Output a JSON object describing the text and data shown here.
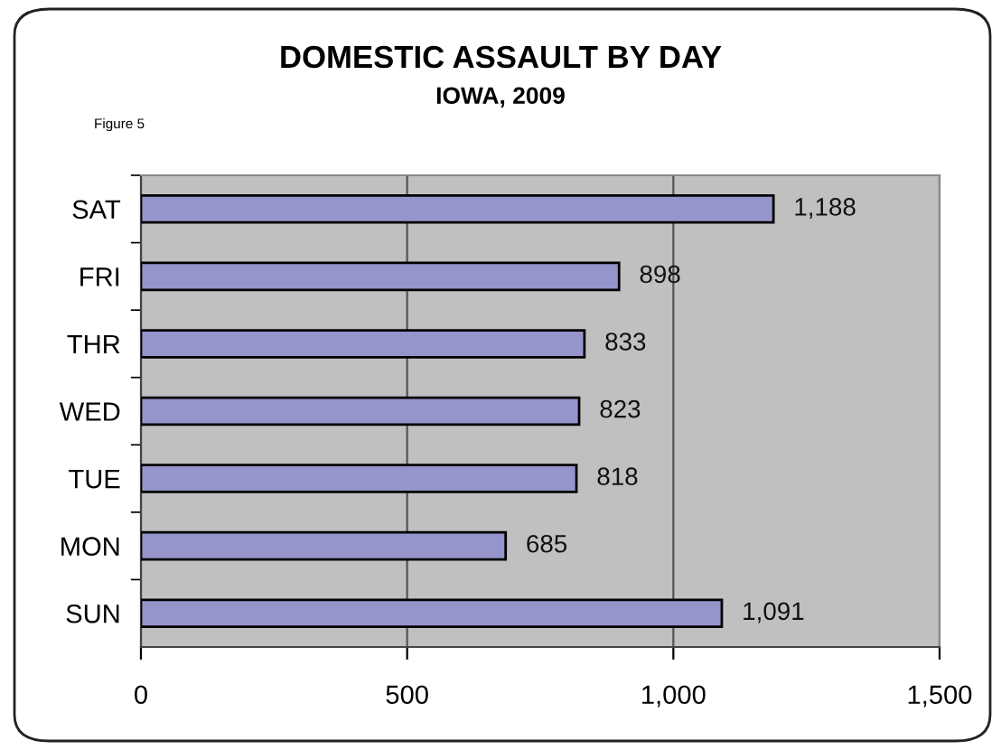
{
  "chart_data": {
    "type": "bar",
    "orientation": "horizontal",
    "title": "DOMESTIC ASSAULT BY DAY",
    "subtitle": "IOWA, 2009",
    "annotations": [
      "Figure 5"
    ],
    "categories": [
      "SAT",
      "FRI",
      "THR",
      "WED",
      "TUE",
      "MON",
      "SUN"
    ],
    "values": [
      1188,
      898,
      833,
      823,
      818,
      685,
      1091
    ],
    "value_labels": [
      "1,188",
      "898",
      "833",
      "823",
      "818",
      "685",
      "1,091"
    ],
    "color": "#9595cb",
    "xlim": [
      0,
      1500
    ],
    "xticks": [
      0,
      500,
      {
        "value": 1000,
        "label": "1,000"
      },
      {
        "value": 1500,
        "label": "1,500"
      }
    ],
    "grid": "x",
    "legend": false
  }
}
